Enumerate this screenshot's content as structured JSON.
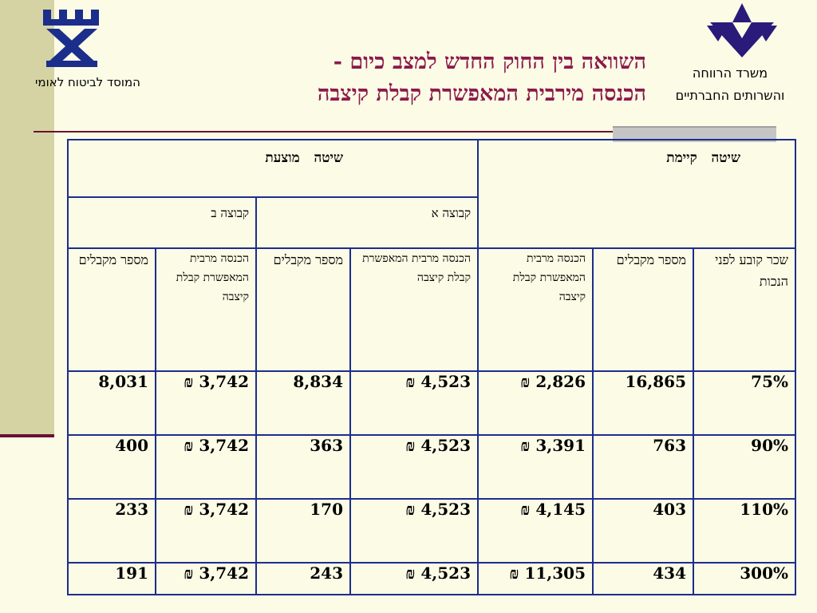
{
  "header": {
    "title_line1": "השוואה בין החוק החדש למצב כיום -",
    "title_line2": "הכנסה מירבית המאפשרת קבלת קיצבה",
    "nii_name": "המוסד לביטוח לאומי",
    "ministry_line1": "משרד הרווחה",
    "ministry_line2": "והשרותים החברתיים"
  },
  "colors": {
    "title": "#8b1a4a",
    "table_border": "#1b2e8c",
    "accent_line": "#6a1134",
    "left_strip": "#d5d3a3"
  },
  "table": {
    "method_existing": "שיטה   קיימת",
    "method_proposed": "שיטה   מוצעת",
    "group_a": "קבוצה א",
    "group_b": "קבוצה ב",
    "columns": {
      "salary": "שכר קובע לפני הנכות",
      "existing_recipients": "מספר מקבלים",
      "existing_max_income": "הכנסה מרבית המאפשרת קבלת קיצבה",
      "a_max_income": "הכנסה מרבית המאפשרת קבלת קיצבה",
      "a_recipients": "מספר מקבלים",
      "b_max_income": "הכנסה מרבית המאפשרת קבלת קיצבה",
      "b_recipients": "מספר מקבלים"
    },
    "rows": [
      {
        "salary": "75%",
        "existing_recipients": "16,865",
        "existing_max_income": "2,826 ₪",
        "a_max_income": "4,523 ₪",
        "a_recipients": "8,834",
        "b_max_income": "3,742 ₪",
        "b_recipients": "8,031"
      },
      {
        "salary": "90%",
        "existing_recipients": "763",
        "existing_max_income": "3,391 ₪",
        "a_max_income": "4,523 ₪",
        "a_recipients": "363",
        "b_max_income": "3,742 ₪",
        "b_recipients": "400"
      },
      {
        "salary": "110%",
        "existing_recipients": "403",
        "existing_max_income": "4,145 ₪",
        "a_max_income": "4,523 ₪",
        "a_recipients": "170",
        "b_max_income": "3,742 ₪",
        "b_recipients": "233"
      },
      {
        "salary": "300%",
        "existing_recipients": "434",
        "existing_max_income": "11,305 ₪",
        "a_max_income": "4,523 ₪",
        "a_recipients": "243",
        "b_max_income": "3,742 ₪",
        "b_recipients": "191"
      }
    ]
  }
}
